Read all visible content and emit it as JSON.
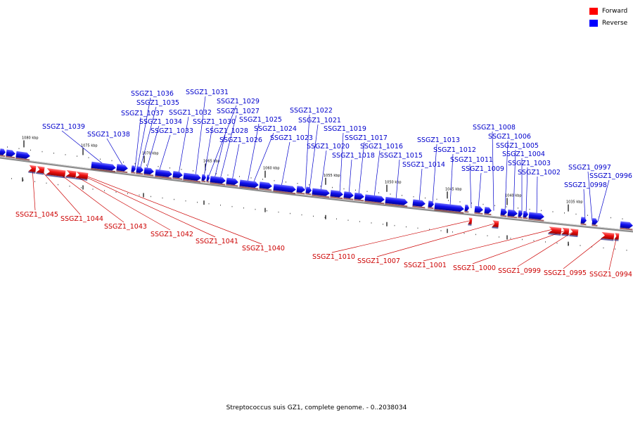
{
  "title": "Streptococcus suis GZ1, complete genome. - 0..2038034",
  "colors": {
    "forward": "#ff0000",
    "reverse": "#0000ff",
    "forward_label": "#cc0000",
    "reverse_label": "#0000cc",
    "backbone": "#8a8a8a"
  },
  "legend": [
    {
      "label": "Forward",
      "color": "#ff0000"
    },
    {
      "label": "Reverse",
      "color": "#0000ff"
    }
  ],
  "scale": {
    "unit": "kbp",
    "ticks": [
      {
        "kbp": 1080,
        "label": "1080 kbp"
      },
      {
        "kbp": 1075,
        "label": "1075 kbp"
      },
      {
        "kbp": 1070,
        "label": "1070 kbp"
      },
      {
        "kbp": 1065,
        "label": "1065 kbp"
      },
      {
        "kbp": 1060,
        "label": "1060 kbp"
      },
      {
        "kbp": 1055,
        "label": "1055 kbp"
      },
      {
        "kbp": 1050,
        "label": "1050 kbp"
      },
      {
        "kbp": 1045,
        "label": "1045 kbp"
      },
      {
        "kbp": 1040,
        "label": "1040 kbp"
      },
      {
        "kbp": 1035,
        "label": "1035 kbp"
      }
    ]
  },
  "genes": {
    "reverse": [
      "SSGZ1_1039",
      "SSGZ1_1038",
      "SSGZ1_1037",
      "SSGZ1_1036",
      "SSGZ1_1035",
      "SSGZ1_1034",
      "SSGZ1_1033",
      "SSGZ1_1032",
      "SSGZ1_1031",
      "SSGZ1_1030",
      "SSGZ1_1029",
      "SSGZ1_1028",
      "SSGZ1_1027",
      "SSGZ1_1026",
      "SSGZ1_1025",
      "SSGZ1_1024",
      "SSGZ1_1023",
      "SSGZ1_1022",
      "SSGZ1_1021",
      "SSGZ1_1020",
      "SSGZ1_1019",
      "SSGZ1_1018",
      "SSGZ1_1017",
      "SSGZ1_1016",
      "SSGZ1_1015",
      "SSGZ1_1014",
      "SSGZ1_1013",
      "SSGZ1_1012",
      "SSGZ1_1011",
      "SSGZ1_1009",
      "SSGZ1_1008",
      "SSGZ1_1006",
      "SSGZ1_1005",
      "SSGZ1_1004",
      "SSGZ1_1003",
      "SSGZ1_1002",
      "SSGZ1_0998",
      "SSGZ1_0997",
      "SSGZ1_0996"
    ],
    "forward": [
      "SSGZ1_1045",
      "SSGZ1_1044",
      "SSGZ1_1043",
      "SSGZ1_1042",
      "SSGZ1_1041",
      "SSGZ1_1040",
      "SSGZ1_1010",
      "SSGZ1_1007",
      "SSGZ1_1001",
      "SSGZ1_1000",
      "SSGZ1_0999",
      "SSGZ1_0995",
      "SSGZ1_0994"
    ]
  }
}
